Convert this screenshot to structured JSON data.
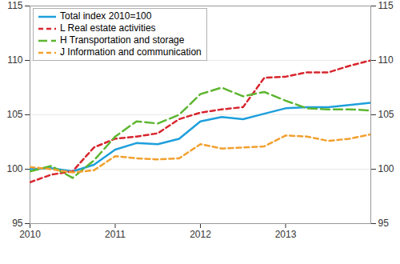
{
  "chart_data": {
    "type": "line",
    "x": [
      2010,
      2010.25,
      2010.5,
      2010.75,
      2011,
      2011.25,
      2011.5,
      2011.75,
      2012,
      2012.25,
      2012.5,
      2012.75,
      2013,
      2013.25,
      2013.5,
      2013.75,
      2014
    ],
    "xlim": [
      2010,
      2014
    ],
    "xticks": [
      2010,
      2011,
      2012,
      2013
    ],
    "ylim": [
      95,
      115
    ],
    "yticks": [
      95,
      100,
      105,
      110,
      115
    ],
    "grid": true,
    "legend": "top-left",
    "series": [
      {
        "name": "Total index 2010=100",
        "color": "#1e9fdc",
        "line_style": "solid",
        "values": [
          100.0,
          100.1,
          99.8,
          100.4,
          101.8,
          102.4,
          102.3,
          102.8,
          104.4,
          104.8,
          104.6,
          105.1,
          105.6,
          105.7,
          105.7,
          105.9,
          106.1
        ]
      },
      {
        "name": "L Real estate activities",
        "color": "#d7262e",
        "line_style": "dashed",
        "values": [
          98.8,
          99.5,
          99.8,
          102.0,
          102.8,
          103.0,
          103.3,
          104.6,
          105.2,
          105.5,
          105.7,
          108.4,
          108.5,
          108.9,
          108.9,
          109.5,
          110.0
        ]
      },
      {
        "name": "H Transportation and storage",
        "color": "#5db530",
        "line_style": "long-dashed",
        "values": [
          99.8,
          100.3,
          99.2,
          100.8,
          103.0,
          104.4,
          104.2,
          105.0,
          106.9,
          107.5,
          106.7,
          107.1,
          106.3,
          105.6,
          105.5,
          105.5,
          105.4
        ]
      },
      {
        "name": "J Information and communication",
        "color": "#f3a02f",
        "line_style": "dashed",
        "values": [
          100.2,
          100.0,
          99.7,
          99.9,
          101.2,
          101.0,
          100.9,
          101.0,
          102.3,
          101.9,
          102.0,
          102.1,
          103.1,
          103.0,
          102.6,
          102.8,
          103.2
        ]
      }
    ]
  }
}
